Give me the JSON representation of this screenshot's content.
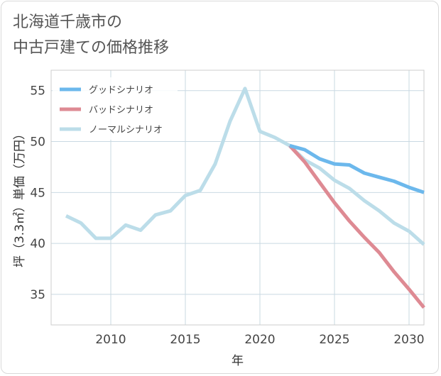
{
  "title_lines": [
    "北海道千歳市の",
    "中古戸建ての価格推移"
  ],
  "chart_data": {
    "type": "line",
    "xlabel": "年",
    "ylabel": "坪（3.3㎡）単価（万円）",
    "xlim": [
      2006,
      2031
    ],
    "ylim": [
      32,
      57
    ],
    "x_ticks": [
      2010,
      2015,
      2020,
      2025,
      2030
    ],
    "y_ticks": [
      35,
      40,
      45,
      50,
      55
    ],
    "grid": true,
    "legend_position": "top-left",
    "series": [
      {
        "name": "グッドシナリオ",
        "color": "#6cb8ec",
        "x": [
          2022,
          2023,
          2024,
          2025,
          2026,
          2027,
          2028,
          2029,
          2030,
          2031
        ],
        "y": [
          49.6,
          49.2,
          48.3,
          47.8,
          47.7,
          46.9,
          46.5,
          46.1,
          45.5,
          45.0
        ]
      },
      {
        "name": "バッドシナリオ",
        "color": "#de8a93",
        "x": [
          2022,
          2023,
          2024,
          2025,
          2026,
          2027,
          2028,
          2029,
          2030,
          2031
        ],
        "y": [
          49.6,
          48.0,
          46.0,
          44.0,
          42.2,
          40.6,
          39.1,
          37.2,
          35.5,
          33.7
        ]
      },
      {
        "name": "ノーマルシナリオ",
        "color": "#bcdde9",
        "x": [
          2007,
          2008,
          2009,
          2010,
          2011,
          2012,
          2013,
          2014,
          2015,
          2016,
          2017,
          2018,
          2019,
          2020,
          2021,
          2022,
          2023,
          2024,
          2025,
          2026,
          2027,
          2028,
          2029,
          2030,
          2031
        ],
        "y": [
          42.7,
          42.0,
          40.5,
          40.5,
          41.8,
          41.3,
          42.8,
          43.2,
          44.7,
          45.2,
          47.8,
          52.0,
          55.2,
          51.0,
          50.4,
          49.6,
          48.2,
          47.4,
          46.2,
          45.4,
          44.2,
          43.2,
          42.0,
          41.2,
          39.9
        ]
      }
    ]
  }
}
